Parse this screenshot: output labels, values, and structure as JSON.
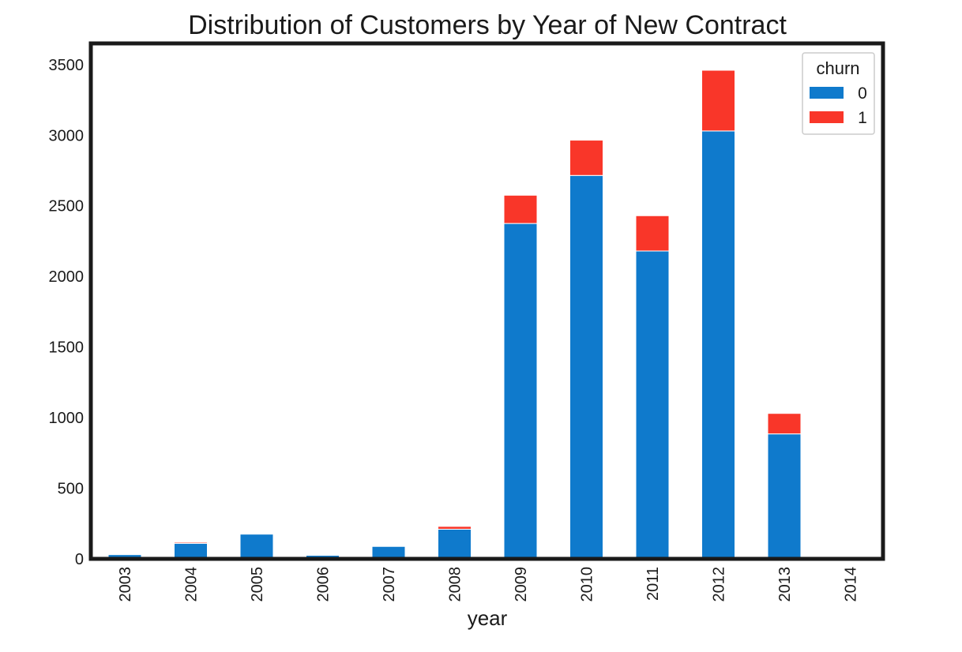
{
  "chart_data": {
    "type": "bar",
    "stacked": true,
    "title": "Distribution of Customers by Year of New Contract",
    "xlabel": "year",
    "ylabel": "",
    "ylim": [
      0,
      3500
    ],
    "yticks": [
      0,
      500,
      1000,
      1500,
      2000,
      2500,
      3000,
      3500
    ],
    "grid": false,
    "legend": {
      "title": "churn",
      "placement": "top-right"
    },
    "categories": [
      "2003",
      "2004",
      "2005",
      "2006",
      "2007",
      "2008",
      "2009",
      "2010",
      "2011",
      "2012",
      "2013",
      "2014"
    ],
    "series": [
      {
        "name": "0",
        "color": "#0f7acc",
        "values": [
          30,
          110,
          175,
          25,
          88,
          210,
          2375,
          2715,
          2180,
          3030,
          885,
          0
        ]
      },
      {
        "name": "1",
        "color": "#f93629",
        "values": [
          0,
          8,
          0,
          0,
          0,
          20,
          200,
          250,
          250,
          430,
          145,
          0
        ]
      }
    ]
  }
}
